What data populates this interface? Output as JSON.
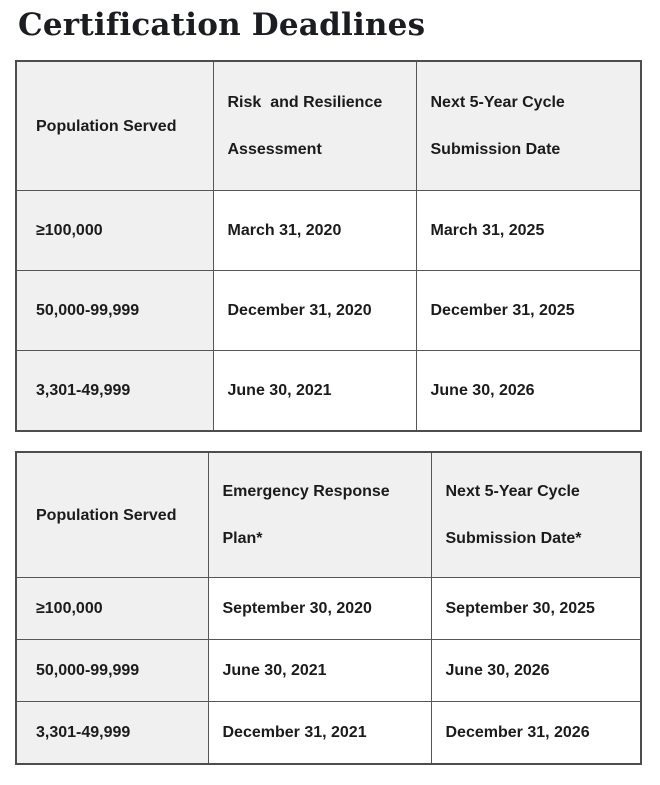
{
  "page": {
    "title": "Certification Deadlines"
  },
  "colors": {
    "header_background": "#f0f0f0",
    "row_header_background": "#f0f0f0",
    "border": "#565656",
    "text": "#1b1b1b",
    "page_background": "#ffffff"
  },
  "tables": [
    {
      "name": "risk-and-resilience-assessment-deadlines",
      "columns": [
        "Population Served",
        "Risk  and Resilience\nAssessment",
        "Next 5-Year Cycle\nSubmission Date"
      ],
      "rows": [
        [
          "≥100,000",
          "March 31, 2020",
          "March 31, 2025"
        ],
        [
          "50,000-99,999",
          "December 31, 2020",
          "December 31, 2025"
        ],
        [
          "3,301-49,999",
          "June 30, 2021",
          "June 30, 2026"
        ]
      ]
    },
    {
      "name": "emergency-response-plan-deadlines",
      "columns": [
        "Population Served",
        "Emergency Response\nPlan*",
        "Next 5-Year Cycle\nSubmission Date*"
      ],
      "rows": [
        [
          "≥100,000",
          "September 30, 2020",
          "September 30, 2025"
        ],
        [
          "50,000-99,999",
          "June 30, 2021",
          "June 30, 2026"
        ],
        [
          "3,301-49,999",
          "December 31, 2021",
          "December 31, 2026"
        ]
      ]
    }
  ]
}
